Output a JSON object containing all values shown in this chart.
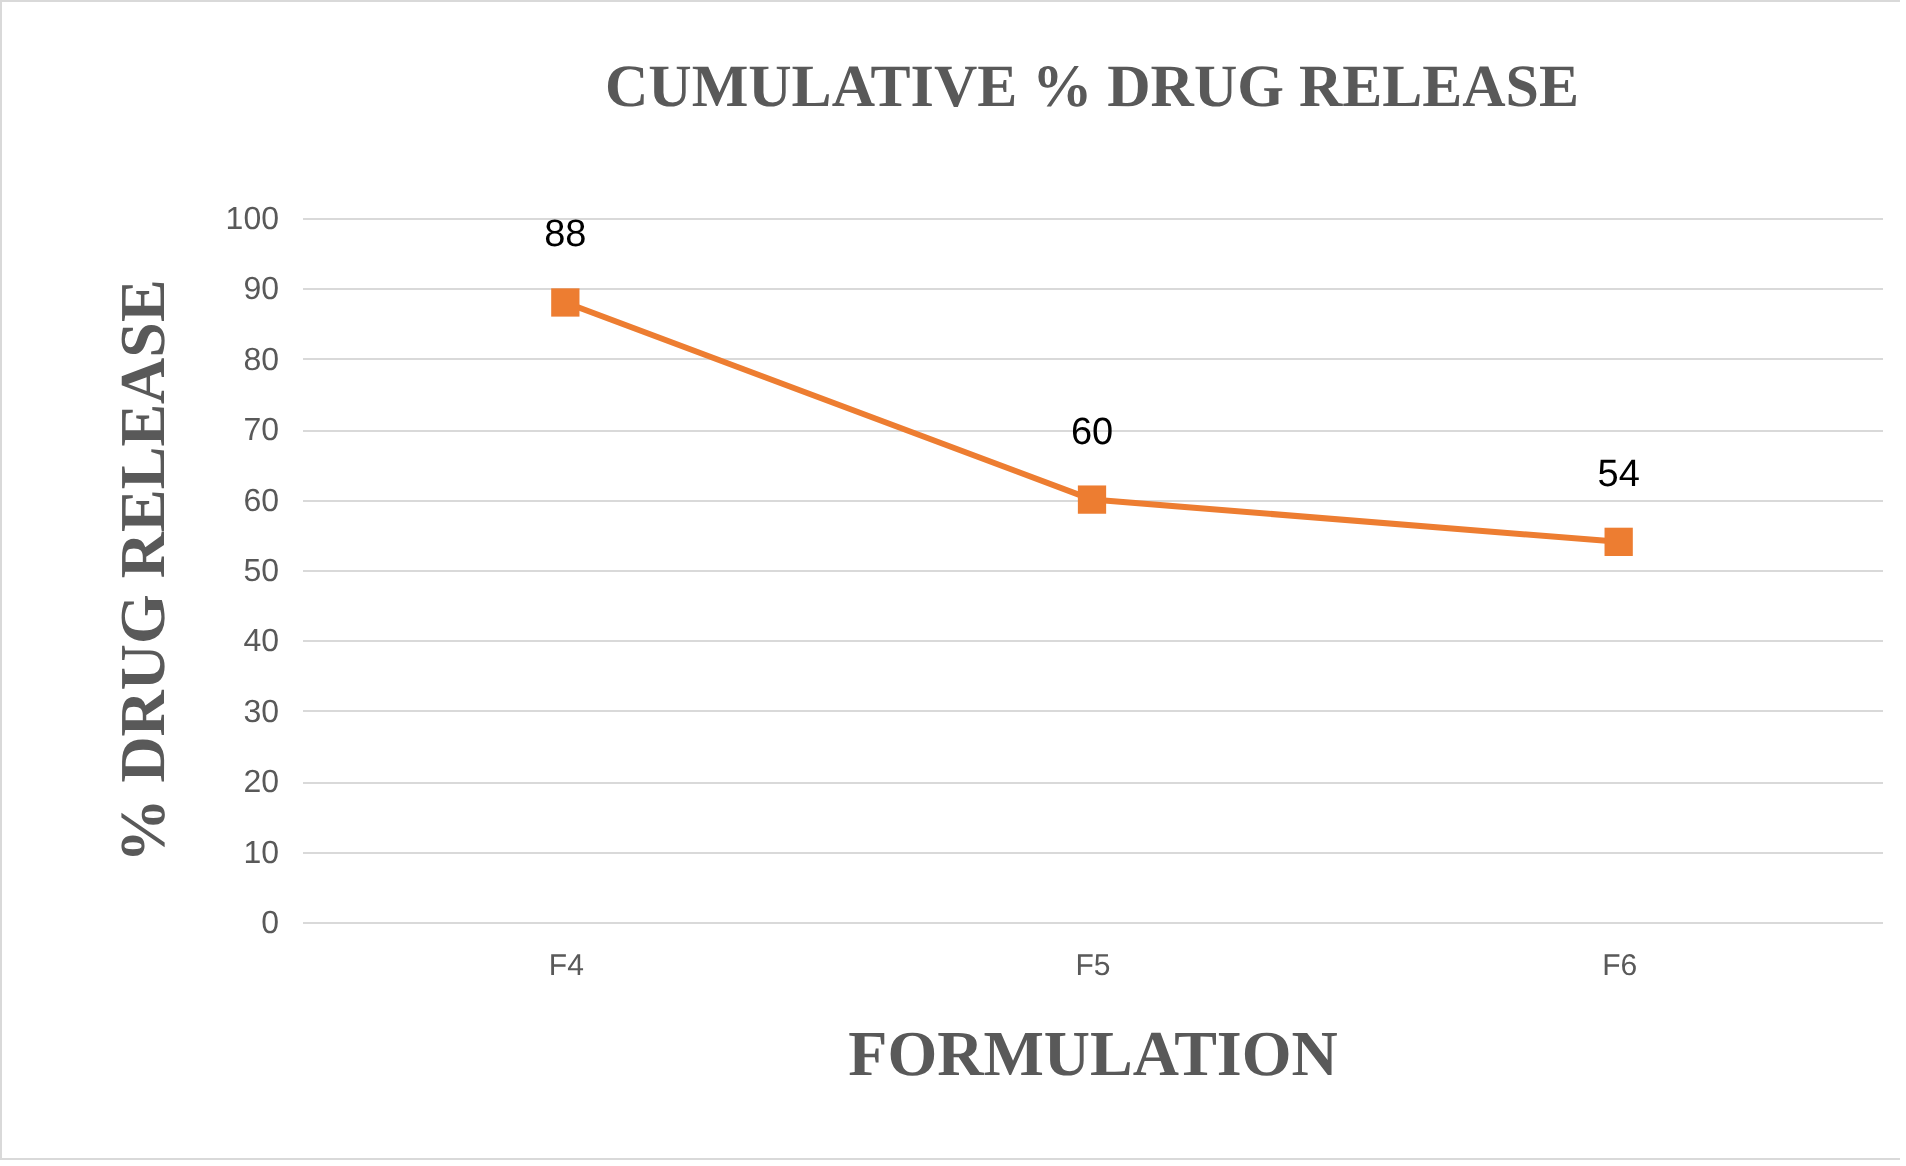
{
  "chart_data": {
    "type": "line",
    "title": "CUMULATIVE  % DRUG RELEASE",
    "xlabel": "FORMULATION",
    "ylabel": "% DRUG RELEASE",
    "categories": [
      "F4",
      "F5",
      "F6"
    ],
    "series": [
      {
        "color": "#ed7d31",
        "values": [
          88,
          60,
          54
        ]
      }
    ],
    "ylim": [
      0,
      100
    ],
    "yticks": [
      0,
      10,
      20,
      30,
      40,
      50,
      60,
      70,
      80,
      90,
      100
    ],
    "grid": "y",
    "marker": "square",
    "data_labels": true
  }
}
